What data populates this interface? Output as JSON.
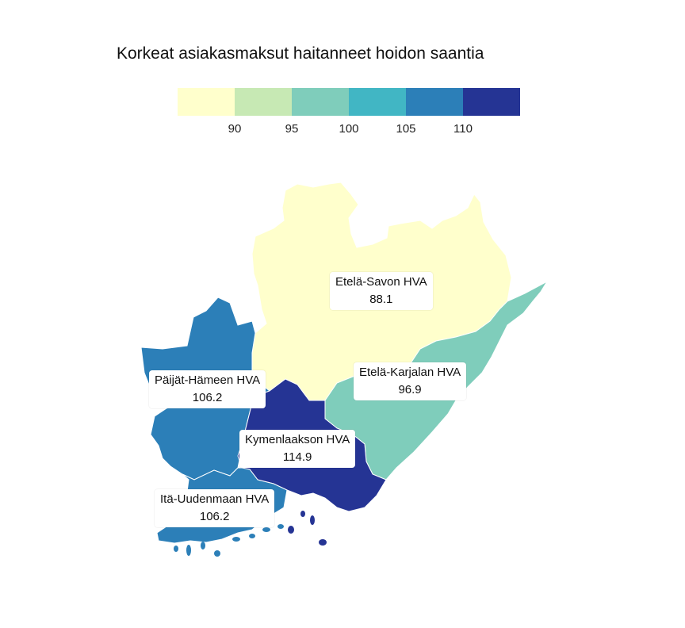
{
  "title": "Korkeat asiakasmaksut haitanneet hoidon saantia",
  "legend": {
    "colors": [
      "#ffffcc",
      "#c7e9b4",
      "#7fcdbb",
      "#41b6c4",
      "#2c7fb8",
      "#253494"
    ],
    "ticks": [
      "90",
      "95",
      "100",
      "105",
      "110"
    ]
  },
  "regions": [
    {
      "name": "Etelä-Savon HVA",
      "value": "88.1",
      "color": "#ffffcc"
    },
    {
      "name": "Etelä-Karjalan HVA",
      "value": "96.9",
      "color": "#7fcdbb"
    },
    {
      "name": "Päijät-Hämeen HVA",
      "value": "106.2",
      "color": "#2c7fb8"
    },
    {
      "name": "Kymenlaakson HVA",
      "value": "114.9",
      "color": "#253494"
    },
    {
      "name": "Itä-Uudenmaan HVA",
      "value": "106.2",
      "color": "#2c7fb8"
    }
  ]
}
